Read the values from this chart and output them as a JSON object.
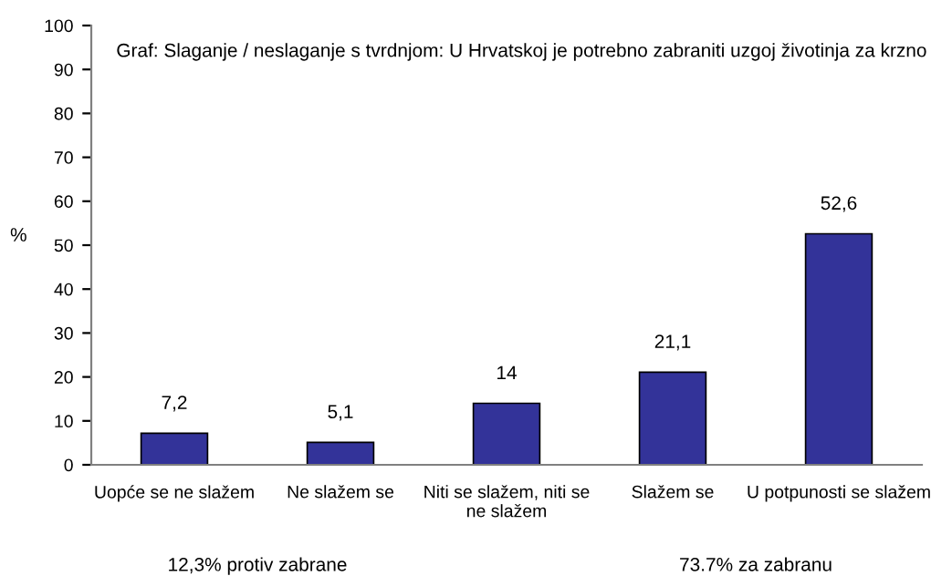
{
  "chart_data": {
    "type": "bar",
    "title": "Graf: Slaganje / neslaganje s tvrdnjom: U Hrvatskoj je potrebno zabraniti uzgoj životinja za krzno",
    "ylabel": "%",
    "categories": [
      "Uopće se ne slažem",
      "Ne slažem se",
      "Niti se slažem, niti se\nne slažem",
      "Slažem se",
      "U potpunosti se slažem"
    ],
    "values": [
      7.2,
      5.1,
      14,
      21.1,
      52.6
    ],
    "value_labels": [
      "7,2",
      "5,1",
      "14",
      "21,1",
      "52,6"
    ],
    "color": "#333399",
    "ylim": [
      0,
      100
    ],
    "yticks": [
      0,
      10,
      20,
      30,
      40,
      50,
      60,
      70,
      80,
      90,
      100
    ],
    "grid": false,
    "legend": false,
    "annotations": [
      "12,3% protiv zabrane",
      "73.7% za zabranu"
    ]
  }
}
